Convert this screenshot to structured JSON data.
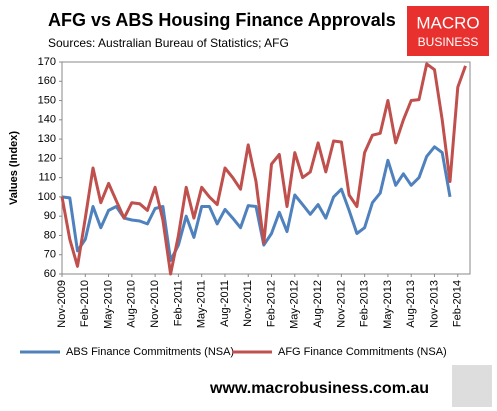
{
  "chart_data": {
    "type": "line",
    "title": "AFG vs ABS Housing Finance Approvals",
    "subtitle": "Sources: Australian Bureau of Statistics; AFG",
    "ylabel": "Values (Index)",
    "categories": [
      "Nov-2009",
      null,
      null,
      "Feb-2010",
      null,
      null,
      "May-2010",
      null,
      null,
      "Aug-2010",
      null,
      null,
      "Nov-2010",
      null,
      null,
      "Feb-2011",
      null,
      null,
      "May-2011",
      null,
      null,
      "Aug-2011",
      null,
      null,
      "Nov-2011",
      null,
      null,
      "Feb-2012",
      null,
      null,
      "May-2012",
      null,
      null,
      "Aug-2012",
      null,
      null,
      "Nov-2012",
      null,
      null,
      "Feb-2013",
      null,
      null,
      "May-2013",
      null,
      null,
      "Aug-2013",
      null,
      null,
      "Nov-2013",
      null,
      null,
      "Feb-2014",
      null
    ],
    "series": [
      {
        "name": "ABS Finance Commitments (NSA)",
        "color": "#4f81bd",
        "values": [
          100,
          99.5,
          72,
          78,
          95,
          84,
          93,
          95,
          89,
          88,
          87.5,
          86,
          94,
          95,
          67,
          75,
          90,
          79,
          95,
          95,
          86,
          93.5,
          89,
          84,
          95.5,
          95,
          75,
          81,
          92,
          82,
          101,
          96,
          91,
          96,
          89,
          100,
          104,
          93,
          81,
          84,
          97,
          102,
          119,
          106,
          112,
          106,
          110,
          121,
          126,
          123,
          100,
          null,
          null
        ]
      },
      {
        "name": "AFG Finance Commitments (NSA)",
        "color": "#c0504d",
        "values": [
          100,
          78,
          64,
          89,
          115,
          97,
          107,
          98,
          89,
          97,
          96.5,
          93,
          105,
          88,
          60,
          80,
          105,
          89,
          105,
          100,
          96,
          115,
          110,
          104,
          127,
          108,
          76,
          117,
          122,
          95,
          123,
          110,
          113,
          128,
          113,
          129,
          128.5,
          101,
          95,
          123,
          132,
          133,
          150,
          128,
          140,
          150,
          150.5,
          169,
          166,
          140,
          108,
          157,
          168
        ]
      }
    ],
    "ylim": [
      60,
      170
    ],
    "yticks": [
      60,
      70,
      80,
      90,
      100,
      110,
      120,
      130,
      140,
      150,
      160,
      170
    ],
    "grid": false,
    "legend": "bottom"
  },
  "branding": {
    "logo_top": "MACRO",
    "logo_bottom": "BUSINESS",
    "website": "www.macrobusiness.com.au"
  }
}
